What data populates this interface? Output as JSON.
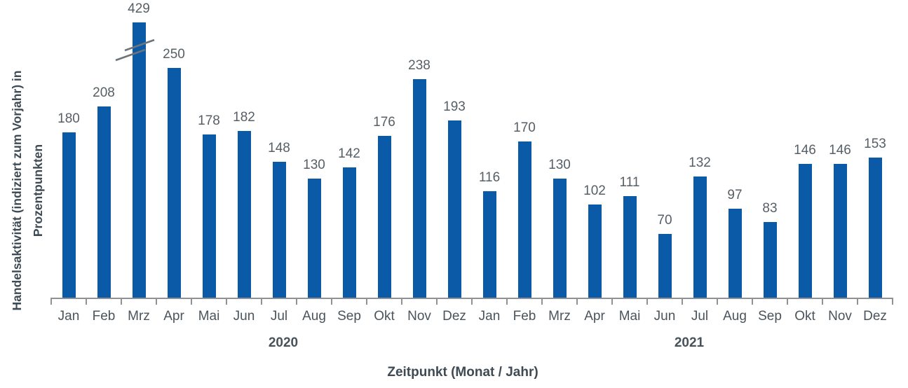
{
  "chart_data": {
    "type": "bar",
    "title": "",
    "categories": [
      "Jan",
      "Feb",
      "Mrz",
      "Apr",
      "Mai",
      "Jun",
      "Jul",
      "Aug",
      "Sep",
      "Okt",
      "Nov",
      "Dez",
      "Jan",
      "Feb",
      "Mrz",
      "Apr",
      "Mai",
      "Jun",
      "Jul",
      "Aug",
      "Sep",
      "Okt",
      "Nov",
      "Dez"
    ],
    "values": [
      180,
      208,
      429,
      250,
      178,
      182,
      148,
      130,
      142,
      176,
      238,
      193,
      116,
      170,
      130,
      102,
      111,
      70,
      132,
      97,
      83,
      146,
      146,
      153
    ],
    "years": [
      {
        "label": "2020",
        "category_span": [
          0,
          11
        ]
      },
      {
        "label": "2021",
        "category_span": [
          12,
          23
        ]
      }
    ],
    "xlabel": "Zeitpunkt (Monat / Jahr)",
    "ylabel": "Handelsaktivität (indiziert zum Vorjahr) in Prozentpunkten",
    "ylabel_lines": [
      "Handelsaktivität (indiziert zum Vorjahr) in",
      "Prozentpunkten"
    ],
    "value_labels_shown": true,
    "grid": false,
    "legend": false,
    "y_baseline": 0,
    "axis_break": {
      "category_index": 2,
      "value": 429,
      "note": "bar truncated with double-slash break marks"
    },
    "colors": {
      "bar": "#0a5aa8",
      "value_label": "#565f66",
      "month_label": "#4a545c",
      "axis": "#8f9194",
      "axis_title": "#3e4b54",
      "break_mark": "#6d747a",
      "background": "#ffffff"
    }
  }
}
